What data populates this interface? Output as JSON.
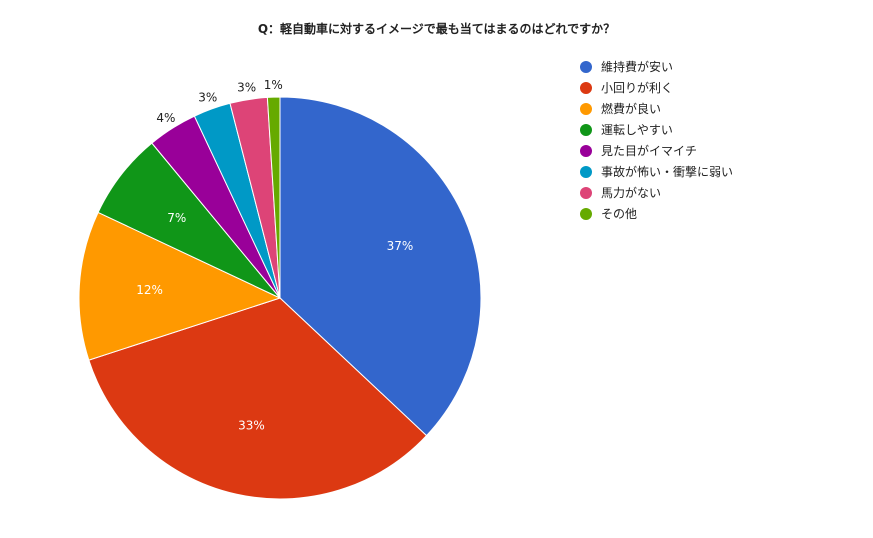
{
  "chart_data": {
    "type": "pie",
    "title": "Q：軽自動車に対するイメージで最も当てはまるのはどれですか？",
    "legend_position": "right",
    "slices": [
      {
        "name": "維持費が安い",
        "value": 37,
        "label": "37%",
        "color": "#3366cc"
      },
      {
        "name": "小回りが利く",
        "value": 33,
        "label": "33%",
        "color": "#dc3912"
      },
      {
        "name": "燃費が良い",
        "value": 12,
        "label": "12%",
        "color": "#ff9900"
      },
      {
        "name": "運転しやすい",
        "value": 7,
        "label": "7%",
        "color": "#109618"
      },
      {
        "name": "見た目がイマイチ",
        "value": 4,
        "label": "4%",
        "color": "#990099"
      },
      {
        "name": "事故が怖い・衝撃に弱い",
        "value": 3,
        "label": "3%",
        "color": "#0099c6"
      },
      {
        "name": "馬力がない",
        "value": 3,
        "label": "3%",
        "color": "#dd4477"
      },
      {
        "name": "その他",
        "value": 1,
        "label": "1%",
        "color": "#66aa00"
      }
    ]
  }
}
